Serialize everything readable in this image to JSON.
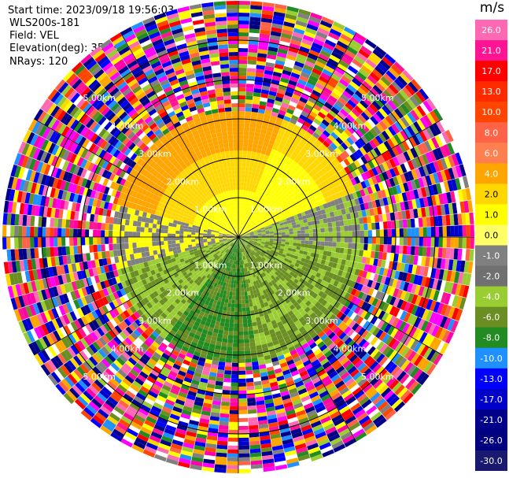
{
  "header": {
    "start_time": "Start time: 2023/09/18 19:56:03",
    "instrument": "WLS200s-181",
    "field": "Field: VEL",
    "elevation": "Elevation(deg): 35.30",
    "nrays": "NRays: 120"
  },
  "chart_data": {
    "type": "polar-ppi",
    "nrays": 120,
    "range_unit": "km",
    "range_rings_km": [
      1,
      2,
      3,
      4,
      5
    ],
    "ring_labels": [
      "1.00km",
      "2.00km",
      "3.00km",
      "4.00km",
      "5.00km"
    ],
    "max_range_km": 6.0,
    "spoke_azimuths_deg": [
      0,
      30,
      60,
      90,
      120,
      150,
      180,
      210,
      240,
      270,
      300,
      330
    ],
    "colorbar": {
      "unit": "m/s",
      "tick_labels": [
        "26.0",
        "21.0",
        "17.0",
        "13.0",
        "10.0",
        "8.0",
        "6.0",
        "4.0",
        "2.0",
        "1.0",
        "0.0",
        "-1.0",
        "-2.0",
        "-4.0",
        "-6.0",
        "-8.0",
        "-10.0",
        "-13.0",
        "-17.0",
        "-21.0",
        "-26.0",
        "-30.0"
      ],
      "colors": [
        "#ff69b4",
        "#ff1493",
        "#ff0000",
        "#ff2a00",
        "#ff4500",
        "#ff6347",
        "#ff7f50",
        "#ffa500",
        "#ffd700",
        "#ffff00",
        "#ffff66",
        "#808080",
        "#707070",
        "#9acd32",
        "#6b8e23",
        "#228b22",
        "#1e90ff",
        "#0000ff",
        "#0000cd",
        "#00008b",
        "#000080",
        "#191970"
      ]
    },
    "near_field": {
      "description_sectors": [
        {
          "az_from": 300,
          "az_to": 360,
          "value": 6.0
        },
        {
          "az_from": 0,
          "az_to": 60,
          "value": 2.0
        },
        {
          "az_from": 60,
          "az_to": 110,
          "value": -4.0
        },
        {
          "az_from": 110,
          "az_to": 180,
          "value": -4.0
        },
        {
          "az_from": 180,
          "az_to": 250,
          "value": -6.0
        },
        {
          "az_from": 250,
          "az_to": 300,
          "value": 1.0
        }
      ]
    },
    "colors": {
      "ring_line": "#000000",
      "label_text": "#ffffff"
    }
  }
}
